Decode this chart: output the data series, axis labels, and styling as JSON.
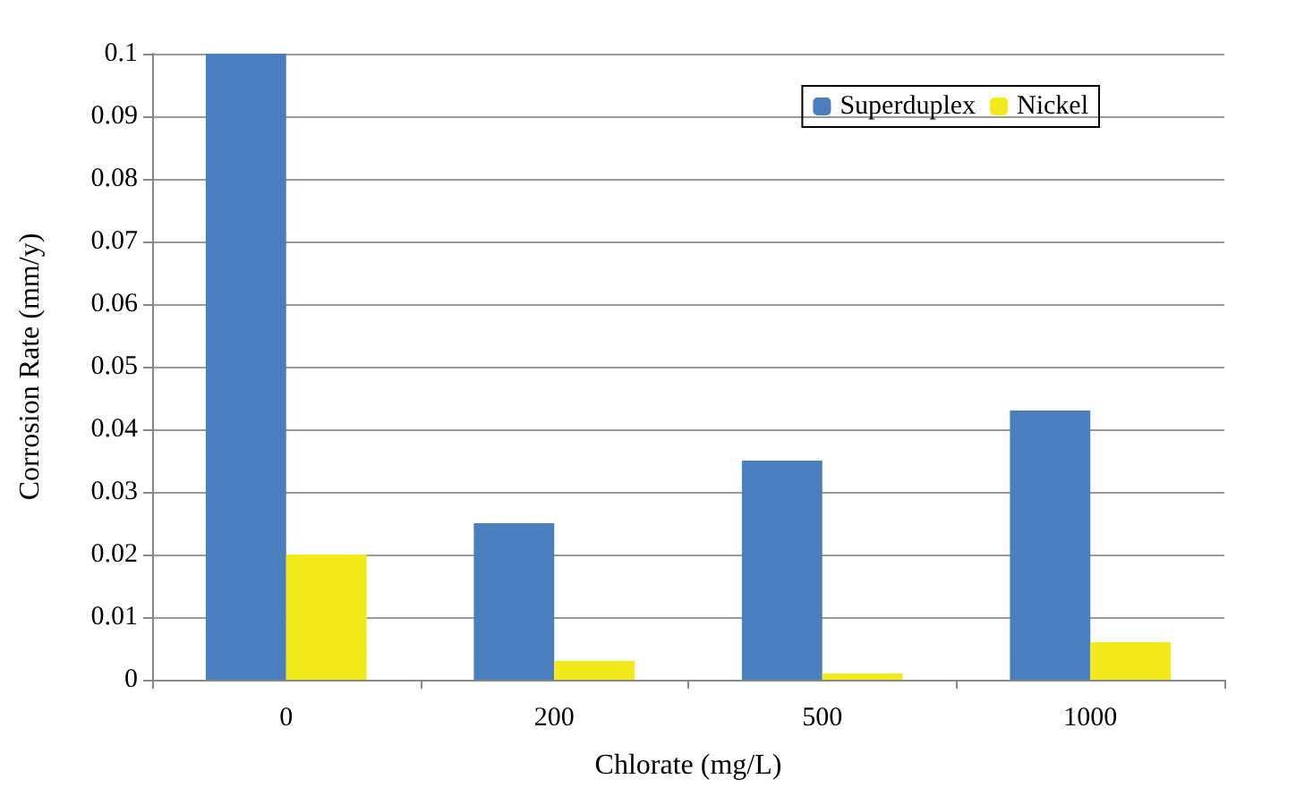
{
  "chart_data": {
    "type": "bar",
    "xlabel": "Chlorate (mg/L)",
    "ylabel": "Corrosion Rate (mm/y)",
    "categories": [
      "0",
      "200",
      "500",
      "1000"
    ],
    "series": [
      {
        "name": "Superduplex",
        "color": "#4a7ebf",
        "values": [
          0.1,
          0.025,
          0.035,
          0.043
        ]
      },
      {
        "name": "Nickel",
        "color": "#f2ea1a",
        "values": [
          0.02,
          0.003,
          0.001,
          0.006
        ]
      }
    ],
    "ylim": [
      0,
      0.1
    ],
    "yticks": [
      0,
      0.01,
      0.02,
      0.03,
      0.04,
      0.05,
      0.06,
      0.07,
      0.08,
      0.09,
      0.1
    ],
    "grid": "y",
    "legend": "top right"
  }
}
